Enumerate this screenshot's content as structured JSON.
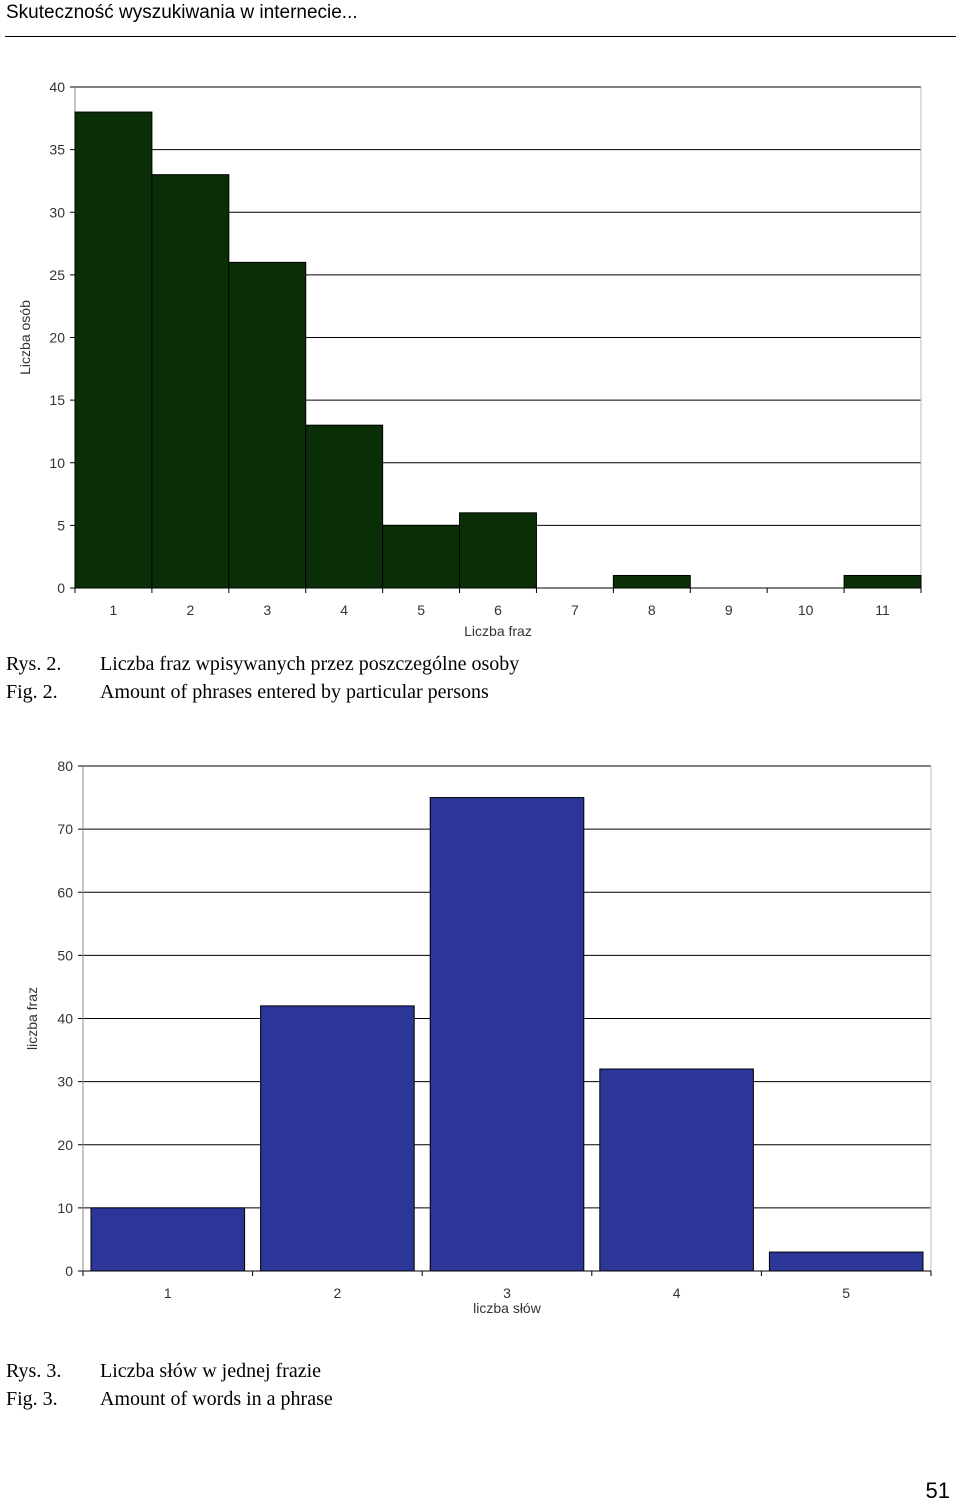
{
  "header": {
    "running_title": "Skuteczność wyszukiwania w internecie..."
  },
  "chart_data": [
    {
      "type": "bar",
      "categories": [
        "1",
        "2",
        "3",
        "4",
        "5",
        "6",
        "7",
        "8",
        "9",
        "10",
        "11"
      ],
      "values": [
        38,
        33,
        26,
        13,
        5,
        6,
        0,
        1,
        0,
        0,
        1
      ],
      "xlabel": "Liczba fraz",
      "ylabel": "Liczba osób",
      "ylim": [
        0,
        40
      ],
      "yticks": [
        "0",
        "5",
        "10",
        "15",
        "20",
        "25",
        "30",
        "35",
        "40"
      ],
      "bar_color": "#0a2f07",
      "grid": true
    },
    {
      "type": "bar",
      "categories": [
        "1",
        "2",
        "3",
        "4",
        "5"
      ],
      "values": [
        10,
        42,
        75,
        32,
        3
      ],
      "xlabel": "liczba słów",
      "ylabel": "liczba fraz",
      "ylim": [
        0,
        80
      ],
      "yticks": [
        "0",
        "10",
        "20",
        "30",
        "40",
        "50",
        "60",
        "70",
        "80"
      ],
      "bar_color": "#2b3698",
      "grid": true
    }
  ],
  "captions": [
    {
      "pl_label": "Rys. 2.",
      "pl_text": "Liczba fraz wpisywanych przez poszczególne osoby",
      "en_label": "Fig. 2.",
      "en_text": "Amount of phrases entered by particular persons"
    },
    {
      "pl_label": "Rys. 3.",
      "pl_text": "Liczba słów w jednej frazie",
      "en_label": "Fig. 3.",
      "en_text": "Amount of words in a phrase"
    }
  ],
  "page_number": "51"
}
